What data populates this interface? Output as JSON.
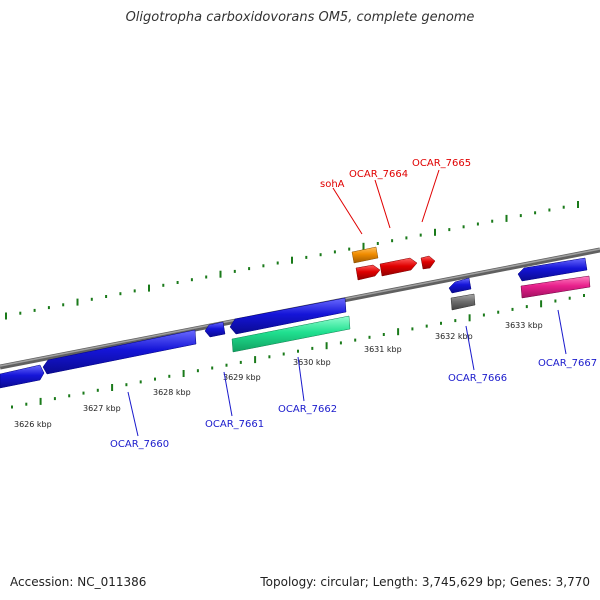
{
  "title": "Oligotropha carboxidovorans OM5, complete genome",
  "footer": {
    "accession": "Accession: NC_011386",
    "summary": "Topology: circular; Length: 3,745,629 bp; Genes: 3,770"
  },
  "tick_labels": [
    "3626 kbp",
    "3627 kbp",
    "3628 kbp",
    "3629 kbp",
    "3630 kbp",
    "3631 kbp",
    "3632 kbp",
    "3633 kbp"
  ],
  "gene_labels": [
    {
      "text": "sohA",
      "color": "#e00000"
    },
    {
      "text": "OCAR_7664",
      "color": "#e00000"
    },
    {
      "text": "OCAR_7665",
      "color": "#e00000"
    },
    {
      "text": "OCAR_7660",
      "color": "#1a1acc"
    },
    {
      "text": "OCAR_7661",
      "color": "#1a1acc"
    },
    {
      "text": "OCAR_7662",
      "color": "#1a1acc"
    },
    {
      "text": "OCAR_7666",
      "color": "#1a1acc"
    },
    {
      "text": "OCAR_7667",
      "color": "#1a1acc"
    }
  ],
  "colors": {
    "backbone": "#8c8c8c",
    "tick": "#1a7a1a",
    "cds_blue": "#1515d8",
    "cds_red": "#e00000",
    "rna_orange": "#f08c00",
    "rrna_green": "#20e090",
    "gray": "#707070",
    "pink": "#e8208c"
  }
}
